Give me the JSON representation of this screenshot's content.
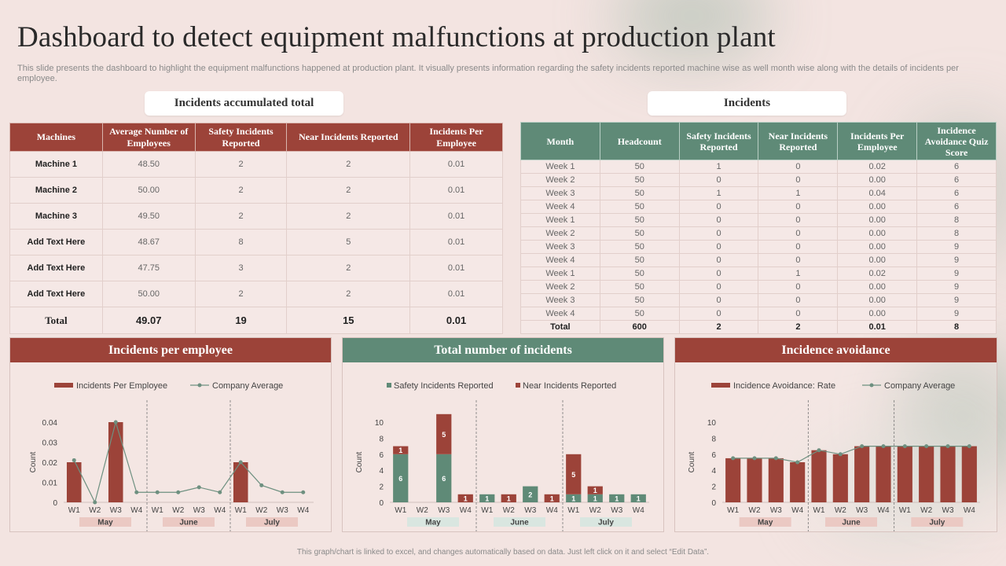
{
  "title": "Dashboard to detect equipment malfunctions at production plant",
  "subtitle": "This slide presents the dashboard to highlight the equipment malfunctions happened at production plant. It visually presents information regarding the safety incidents reported machine wise as well month wise along with the details of incidents per employee.",
  "footer": "This graph/chart is linked to excel, and changes automatically based on data. Just left click on it and select “Edit Data”.",
  "colors": {
    "red": "#9c4339",
    "green": "#5f8a77",
    "line": "#6e9080",
    "monthPink": "#ebc9c3",
    "monthGreen": "#d9e6e0"
  },
  "accumulated": {
    "label": "Incidents accumulated total",
    "headers": [
      "Machines",
      "Average Number of Employees",
      "Safety Incidents Reported",
      "Near Incidents Reported",
      "Incidents Per Employee"
    ],
    "rows": [
      [
        "Machine 1",
        "48.50",
        "2",
        "2",
        "0.01"
      ],
      [
        "Machine 2",
        "50.00",
        "2",
        "2",
        "0.01"
      ],
      [
        "Machine 3",
        "49.50",
        "2",
        "2",
        "0.01"
      ],
      [
        "Add Text Here",
        "48.67",
        "8",
        "5",
        "0.01"
      ],
      [
        "Add Text Here",
        "47.75",
        "3",
        "2",
        "0.01"
      ],
      [
        "Add Text Here",
        "50.00",
        "2",
        "2",
        "0.01"
      ]
    ],
    "total": [
      "Total",
      "49.07",
      "19",
      "15",
      "0.01"
    ]
  },
  "incidents": {
    "label": "Incidents",
    "headers": [
      "Month",
      "Headcount",
      "Safety Incidents Reported",
      "Near Incidents Reported",
      "Incidents Per Employee",
      "Incidence Avoidance Quiz Score"
    ],
    "rows": [
      [
        "Week 1",
        "50",
        "1",
        "0",
        "0.02",
        "6"
      ],
      [
        "Week 2",
        "50",
        "0",
        "0",
        "0.00",
        "6"
      ],
      [
        "Week 3",
        "50",
        "1",
        "1",
        "0.04",
        "6"
      ],
      [
        "Week 4",
        "50",
        "0",
        "0",
        "0.00",
        "6"
      ],
      [
        "Week 1",
        "50",
        "0",
        "0",
        "0.00",
        "8"
      ],
      [
        "Week 2",
        "50",
        "0",
        "0",
        "0.00",
        "8"
      ],
      [
        "Week 3",
        "50",
        "0",
        "0",
        "0.00",
        "9"
      ],
      [
        "Week 4",
        "50",
        "0",
        "0",
        "0.00",
        "9"
      ],
      [
        "Week 1",
        "50",
        "0",
        "1",
        "0.02",
        "9"
      ],
      [
        "Week 2",
        "50",
        "0",
        "0",
        "0.00",
        "9"
      ],
      [
        "Week 3",
        "50",
        "0",
        "0",
        "0.00",
        "9"
      ],
      [
        "Week 4",
        "50",
        "0",
        "0",
        "0.00",
        "9"
      ]
    ],
    "total": [
      "Total",
      "600",
      "2",
      "2",
      "0.01",
      "8"
    ]
  },
  "panels": {
    "per_employee": "Incidents per employee",
    "total_incidents": "Total number of incidents",
    "avoidance": "Incidence avoidance"
  },
  "chart_data": [
    {
      "type": "bar",
      "title": "Incidents per employee",
      "categories": [
        "W1",
        "W2",
        "W3",
        "W4",
        "W1",
        "W2",
        "W3",
        "W4",
        "W1",
        "W2",
        "W3",
        "W4"
      ],
      "groups": [
        "May",
        "June",
        "July"
      ],
      "ylabel": "Count",
      "ylim": [
        0,
        0.04
      ],
      "yticks": [
        "0",
        "0.01",
        "0.02",
        "0.03",
        "0.04"
      ],
      "series": [
        {
          "name": "Incidents Per Employee",
          "kind": "bar",
          "values": [
            0.02,
            0,
            0.04,
            0,
            0,
            0,
            0,
            0,
            0.02,
            0,
            0,
            0
          ]
        },
        {
          "name": "Company Average",
          "kind": "line",
          "values": [
            0.021,
            0,
            0.04,
            0.005,
            0.005,
            0.005,
            0.0075,
            0.005,
            0.02,
            0.0085,
            0.005,
            0.005
          ]
        }
      ]
    },
    {
      "type": "bar",
      "stacked": true,
      "title": "Total number of incidents",
      "categories": [
        "W1",
        "W2",
        "W3",
        "W4",
        "W1",
        "W2",
        "W3",
        "W4",
        "W1",
        "W2",
        "W3",
        "W4"
      ],
      "groups": [
        "May",
        "June",
        "July"
      ],
      "ylabel": "Count",
      "ylim": [
        0,
        10
      ],
      "yticks": [
        "0",
        "2",
        "4",
        "6",
        "8",
        "10"
      ],
      "series": [
        {
          "name": "Safety Incidents Reported",
          "values": [
            6,
            0,
            6,
            0,
            1,
            0,
            2,
            0,
            1,
            1,
            1,
            1
          ]
        },
        {
          "name": "Near Incidents Reported",
          "values": [
            1,
            0,
            5,
            1,
            0,
            1,
            0,
            1,
            5,
            1,
            0,
            0
          ]
        }
      ],
      "labels": {
        "safety": [
          "6",
          "",
          "6",
          "",
          "1",
          "",
          "2",
          "",
          "1",
          "1",
          "1",
          "1"
        ],
        "near": [
          "1",
          "",
          "5",
          "1",
          "",
          "1",
          "",
          "1",
          "5",
          "1",
          "",
          ""
        ]
      }
    },
    {
      "type": "bar",
      "title": "Incidence avoidance",
      "categories": [
        "W1",
        "W2",
        "W3",
        "W4",
        "W1",
        "W2",
        "W3",
        "W4",
        "W1",
        "W2",
        "W3",
        "W4"
      ],
      "groups": [
        "May",
        "June",
        "July"
      ],
      "ylabel": "Count",
      "ylim": [
        0,
        10
      ],
      "yticks": [
        "0",
        "2",
        "4",
        "6",
        "8",
        "10"
      ],
      "series": [
        {
          "name": "Incidence Avoidance: Rate",
          "kind": "bar",
          "values": [
            5.5,
            5.5,
            5.5,
            5,
            6.5,
            6,
            7,
            7,
            7,
            7,
            7,
            7
          ]
        },
        {
          "name": "Company Average",
          "kind": "line",
          "values": [
            5.5,
            5.5,
            5.5,
            5,
            6.5,
            6,
            7,
            7,
            7,
            7,
            7,
            7
          ]
        }
      ]
    }
  ]
}
